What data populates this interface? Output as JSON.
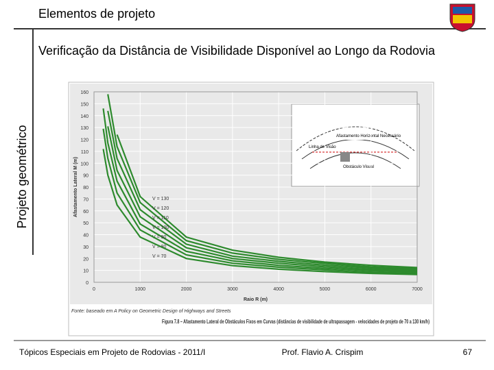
{
  "header": {
    "title": "Elementos de projeto",
    "side_label": "Projeto geométrico"
  },
  "body": {
    "heading": "Verificação da Distância de Visibilidade Disponível ao Longo da Rodovia"
  },
  "chart_data": {
    "type": "line",
    "x_label": "Raio R (m)",
    "y_label": "Afastamento Lateral M (m)",
    "x": [
      200,
      300,
      500,
      1000,
      2000,
      3000,
      4000,
      5000,
      6000,
      7000
    ],
    "series": [
      {
        "name": "V = 130",
        "color": "#2d8a2d",
        "values": [
          null,
          null,
          124,
          72,
          38,
          27,
          21,
          17,
          14.3,
          12.4
        ]
      },
      {
        "name": "V = 120",
        "color": "#2d8a2d",
        "values": [
          null,
          158,
          114,
          67,
          35,
          24.5,
          19.3,
          15.8,
          13,
          11.4
        ]
      },
      {
        "name": "V = 110",
        "color": "#2d8a2d",
        "values": [
          null,
          144,
          104,
          61,
          32,
          22,
          17.6,
          14.4,
          12,
          10.4
        ]
      },
      {
        "name": "V = 100",
        "color": "#2d8a2d",
        "values": [
          null,
          131,
          94,
          55,
          29,
          20,
          16,
          13,
          10.9,
          9.4
        ]
      },
      {
        "name": "V = 90",
        "color": "#2d8a2d",
        "values": [
          146,
          117,
          85,
          49,
          26,
          18,
          14.3,
          11.7,
          9.8,
          8.5
        ]
      },
      {
        "name": "V = 80",
        "color": "#2d8a2d",
        "values": [
          129,
          104,
          75,
          44,
          23,
          16,
          12.7,
          10.4,
          8.6,
          7.5
        ]
      },
      {
        "name": "V = 70",
        "color": "#2d8a2d",
        "values": [
          112,
          90,
          65,
          38,
          20,
          14,
          11,
          9,
          7.5,
          6.5
        ]
      }
    ],
    "xlim": [
      0,
      7000
    ],
    "xticks": [
      0,
      1000,
      2000,
      3000,
      4000,
      5000,
      6000,
      7000
    ],
    "ylim": [
      0,
      160
    ],
    "yticks": [
      0,
      10,
      20,
      30,
      40,
      50,
      60,
      70,
      80,
      90,
      100,
      110,
      120,
      130,
      140,
      150,
      160
    ],
    "grid": true,
    "source": "Fonte: baseado em A Policy on Geometric Design of Highways and Streets",
    "caption": "Figura 7.8 – Afastamento Lateral de Obstáculos Fixos em Curvas (distâncias de visibilidade de ultrapassagem - velocidades de projeto de 70 a 130 km/h)"
  },
  "inset": {
    "labels": [
      "Afastamento Horizontal Necessário",
      "Linha de Visão",
      "Obstáculo Visual"
    ]
  },
  "footer": {
    "course": "Tópicos Especiais em Projeto de Rodovias - 2011/I",
    "author": "Prof. Flavio  A. Crispim",
    "page": "67"
  }
}
